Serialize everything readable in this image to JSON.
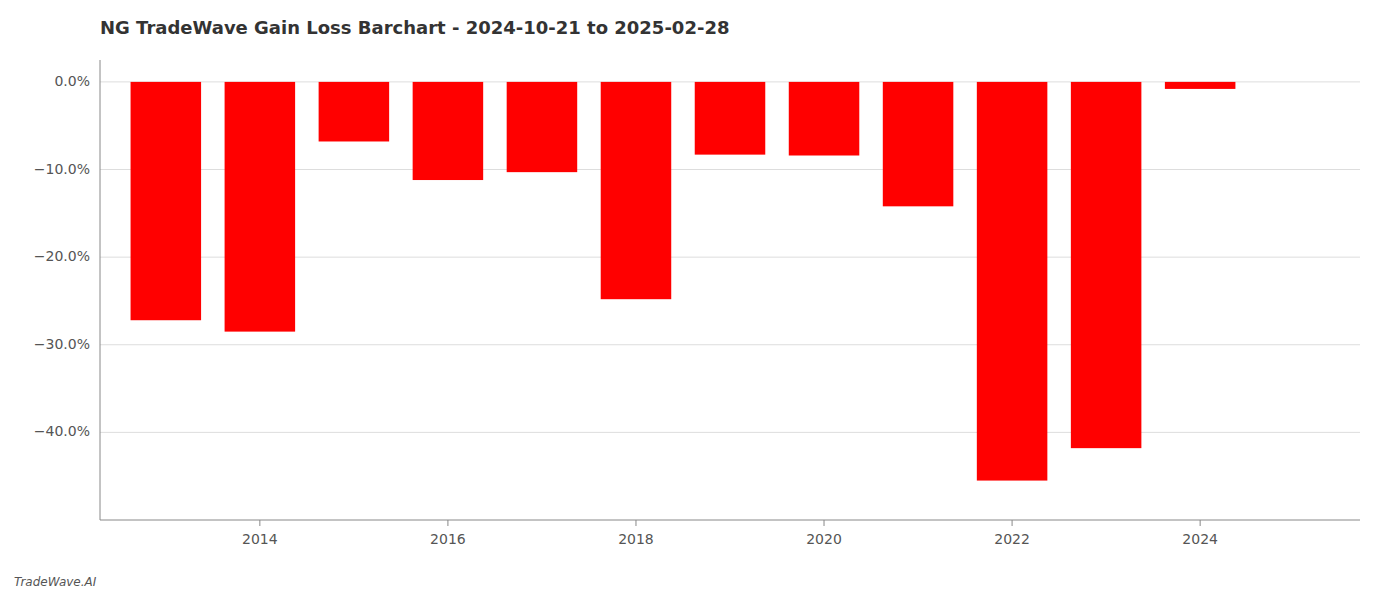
{
  "chart_data": {
    "type": "bar",
    "title": "NG TradeWave Gain Loss Barchart - 2024-10-21 to 2025-02-28",
    "annotations": [
      "TradeWave.AI"
    ],
    "x": [
      2013,
      2014,
      2015,
      2016,
      2017,
      2018,
      2019,
      2020,
      2021,
      2022,
      2023,
      2024
    ],
    "values": [
      -0.272,
      -0.285,
      -0.068,
      -0.112,
      -0.103,
      -0.248,
      -0.083,
      -0.084,
      -0.142,
      -0.455,
      -0.418,
      -0.008
    ],
    "color": "#ff0000",
    "xlim": [
      2012.3,
      2025.7
    ],
    "xticks": [
      2014,
      2016,
      2018,
      2020,
      2022,
      2024
    ],
    "ylim": [
      -0.5,
      0.025
    ],
    "yticks": [
      {
        "value": 0.0,
        "label": "0.0%"
      },
      {
        "value": -0.1,
        "label": "−10.0%"
      },
      {
        "value": -0.2,
        "label": "−20.0%"
      },
      {
        "value": -0.3,
        "label": "−30.0%"
      },
      {
        "value": -0.4,
        "label": "−40.0%"
      }
    ],
    "grid": true
  }
}
